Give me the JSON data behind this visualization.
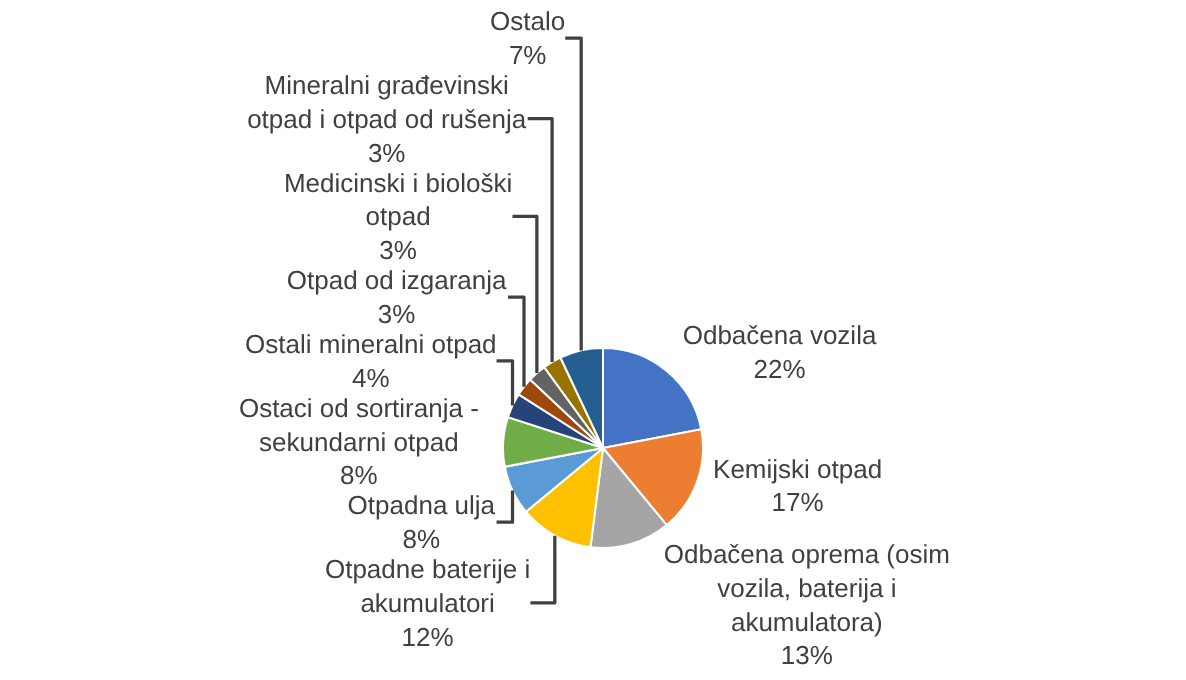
{
  "chart_data": {
    "type": "pie",
    "categories": [
      "Odbačena vozila",
      "Kemijski otpad",
      "Odbačena oprema (osim vozila, baterija i akumulatora)",
      "Otpadne baterije i akumulatori",
      "Otpadna ulja",
      "Ostaci od sortiranja - sekundarni otpad",
      "Ostali mineralni otpad",
      "Otpad od izgaranja",
      "Medicinski i biološki otpad",
      "Mineralni građevinski otpad i otpad od rušenja",
      "Ostalo"
    ],
    "values": [
      22,
      17,
      13,
      12,
      8,
      8,
      4,
      3,
      3,
      3,
      7
    ],
    "value_labels": [
      "22%",
      "17%",
      "13%",
      "12%",
      "8%",
      "8%",
      "4%",
      "3%",
      "3%",
      "3%",
      "7%"
    ],
    "colors": [
      "#4472c4",
      "#ed7d31",
      "#a5a5a5",
      "#ffc000",
      "#5b9bd5",
      "#70ad47",
      "#264478",
      "#9e480e",
      "#636363",
      "#997300",
      "#255e91"
    ],
    "legend": false
  }
}
